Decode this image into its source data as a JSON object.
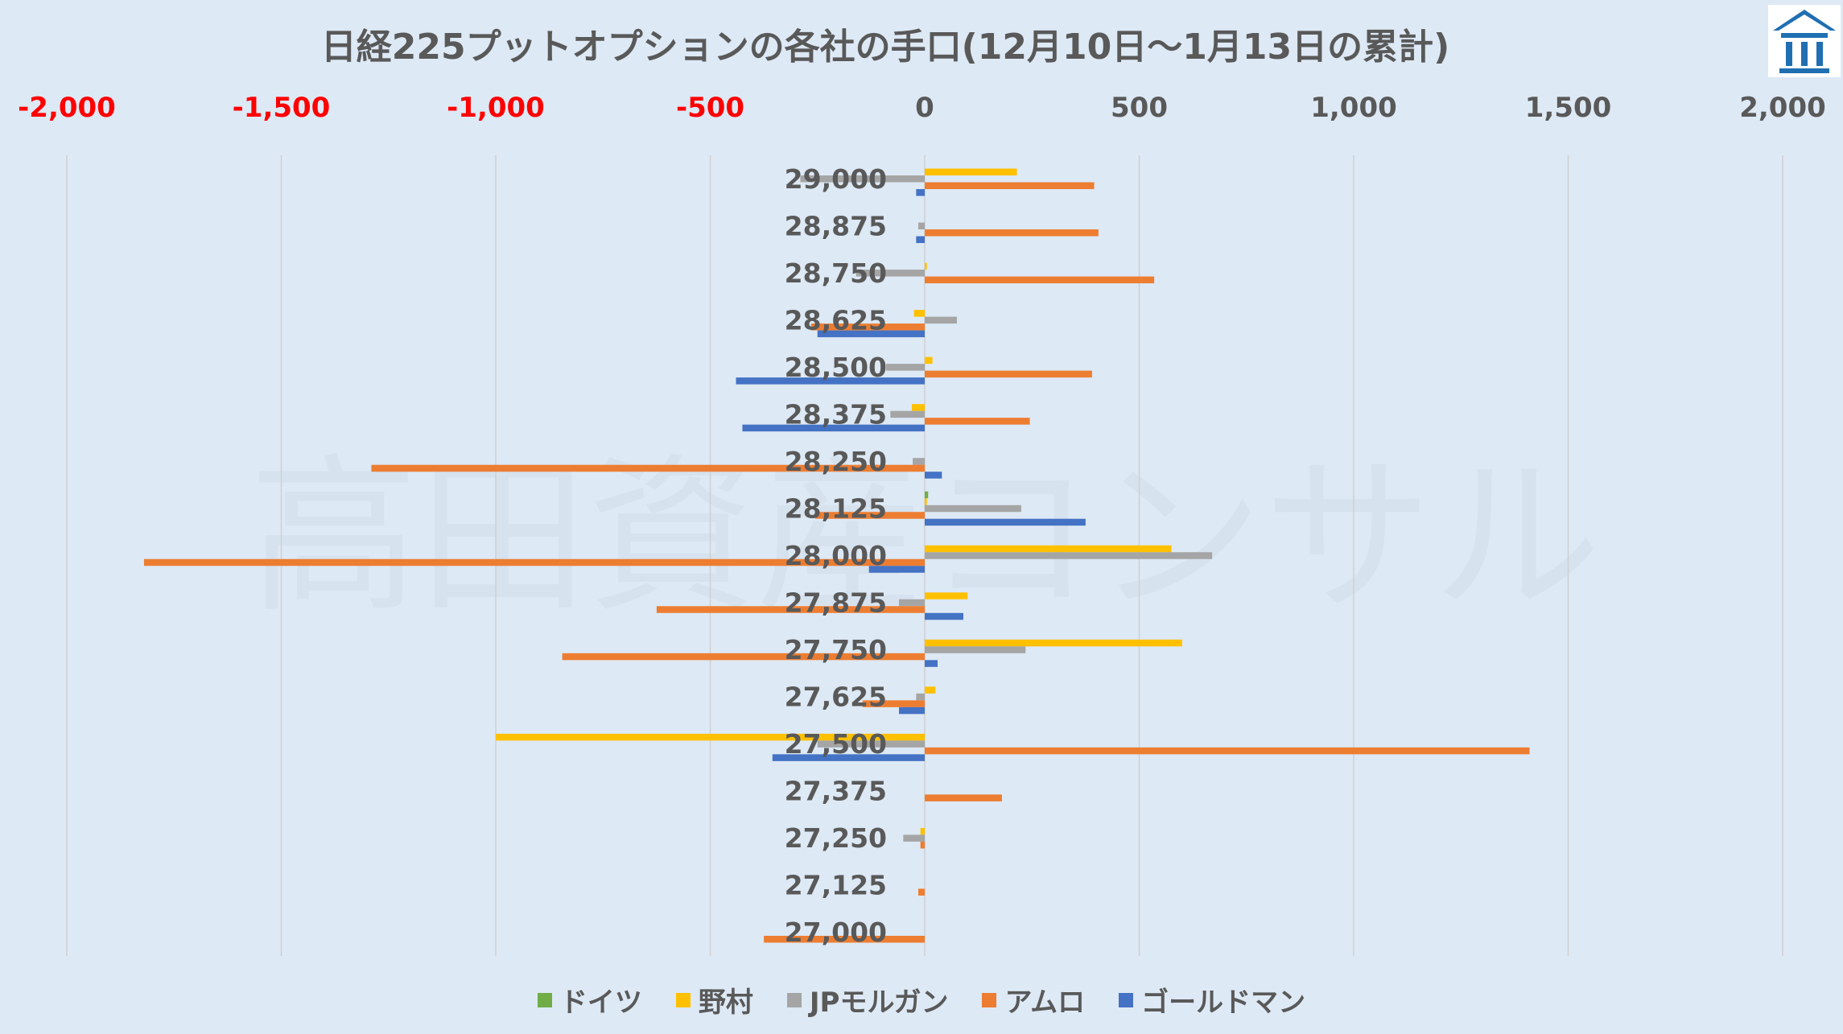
{
  "chart_data": {
    "type": "bar",
    "orientation": "horizontal",
    "title": "日経225プットオプションの各社の手口(12月10日～1月13日の累計)",
    "watermark": "高田資産コンサル",
    "xlim": [
      -2000,
      2000
    ],
    "x_ticks": [
      -2000,
      -1500,
      -1000,
      -500,
      0,
      500,
      1000,
      1500,
      2000
    ],
    "x_tick_labels": [
      "-2,000",
      "-1,500",
      "-1,000",
      "-500",
      "0",
      "500",
      "1,000",
      "1,500",
      "2,000"
    ],
    "negative_tick_color": "#ff0000",
    "positive_tick_color": "#595959",
    "grid": "vertical",
    "legend_position": "bottom",
    "categories": [
      "29,000",
      "28,875",
      "28,750",
      "28,625",
      "28,500",
      "28,375",
      "28,250",
      "28,125",
      "28,000",
      "27,875",
      "27,750",
      "27,625",
      "27,500",
      "27,375",
      "27,250",
      "27,125",
      "27,000"
    ],
    "series": [
      {
        "name": "ドイツ",
        "color": "#70ad47",
        "values": [
          0,
          0,
          0,
          0,
          0,
          0,
          0,
          8,
          0,
          0,
          0,
          0,
          0,
          0,
          0,
          0,
          0
        ]
      },
      {
        "name": "野村",
        "color": "#ffc000",
        "values": [
          215,
          0,
          5,
          -25,
          18,
          -30,
          0,
          5,
          575,
          100,
          600,
          25,
          -1000,
          0,
          -10,
          0,
          0
        ]
      },
      {
        "name": "JPモルガン",
        "color": "#a5a5a5",
        "values": [
          -290,
          -15,
          -160,
          75,
          -90,
          -80,
          -28,
          225,
          670,
          -60,
          235,
          -20,
          -250,
          0,
          -50,
          0,
          0
        ]
      },
      {
        "name": "アムロ",
        "color": "#ed7d31",
        "values": [
          395,
          405,
          535,
          -265,
          390,
          245,
          -1290,
          -255,
          -1820,
          -625,
          -845,
          -145,
          1410,
          180,
          -10,
          -15,
          -375
        ]
      },
      {
        "name": "ゴールドマン",
        "color": "#4472c4",
        "values": [
          -20,
          -20,
          0,
          -250,
          -440,
          -425,
          40,
          375,
          -130,
          90,
          30,
          -60,
          -355,
          0,
          0,
          0,
          0
        ]
      }
    ]
  }
}
